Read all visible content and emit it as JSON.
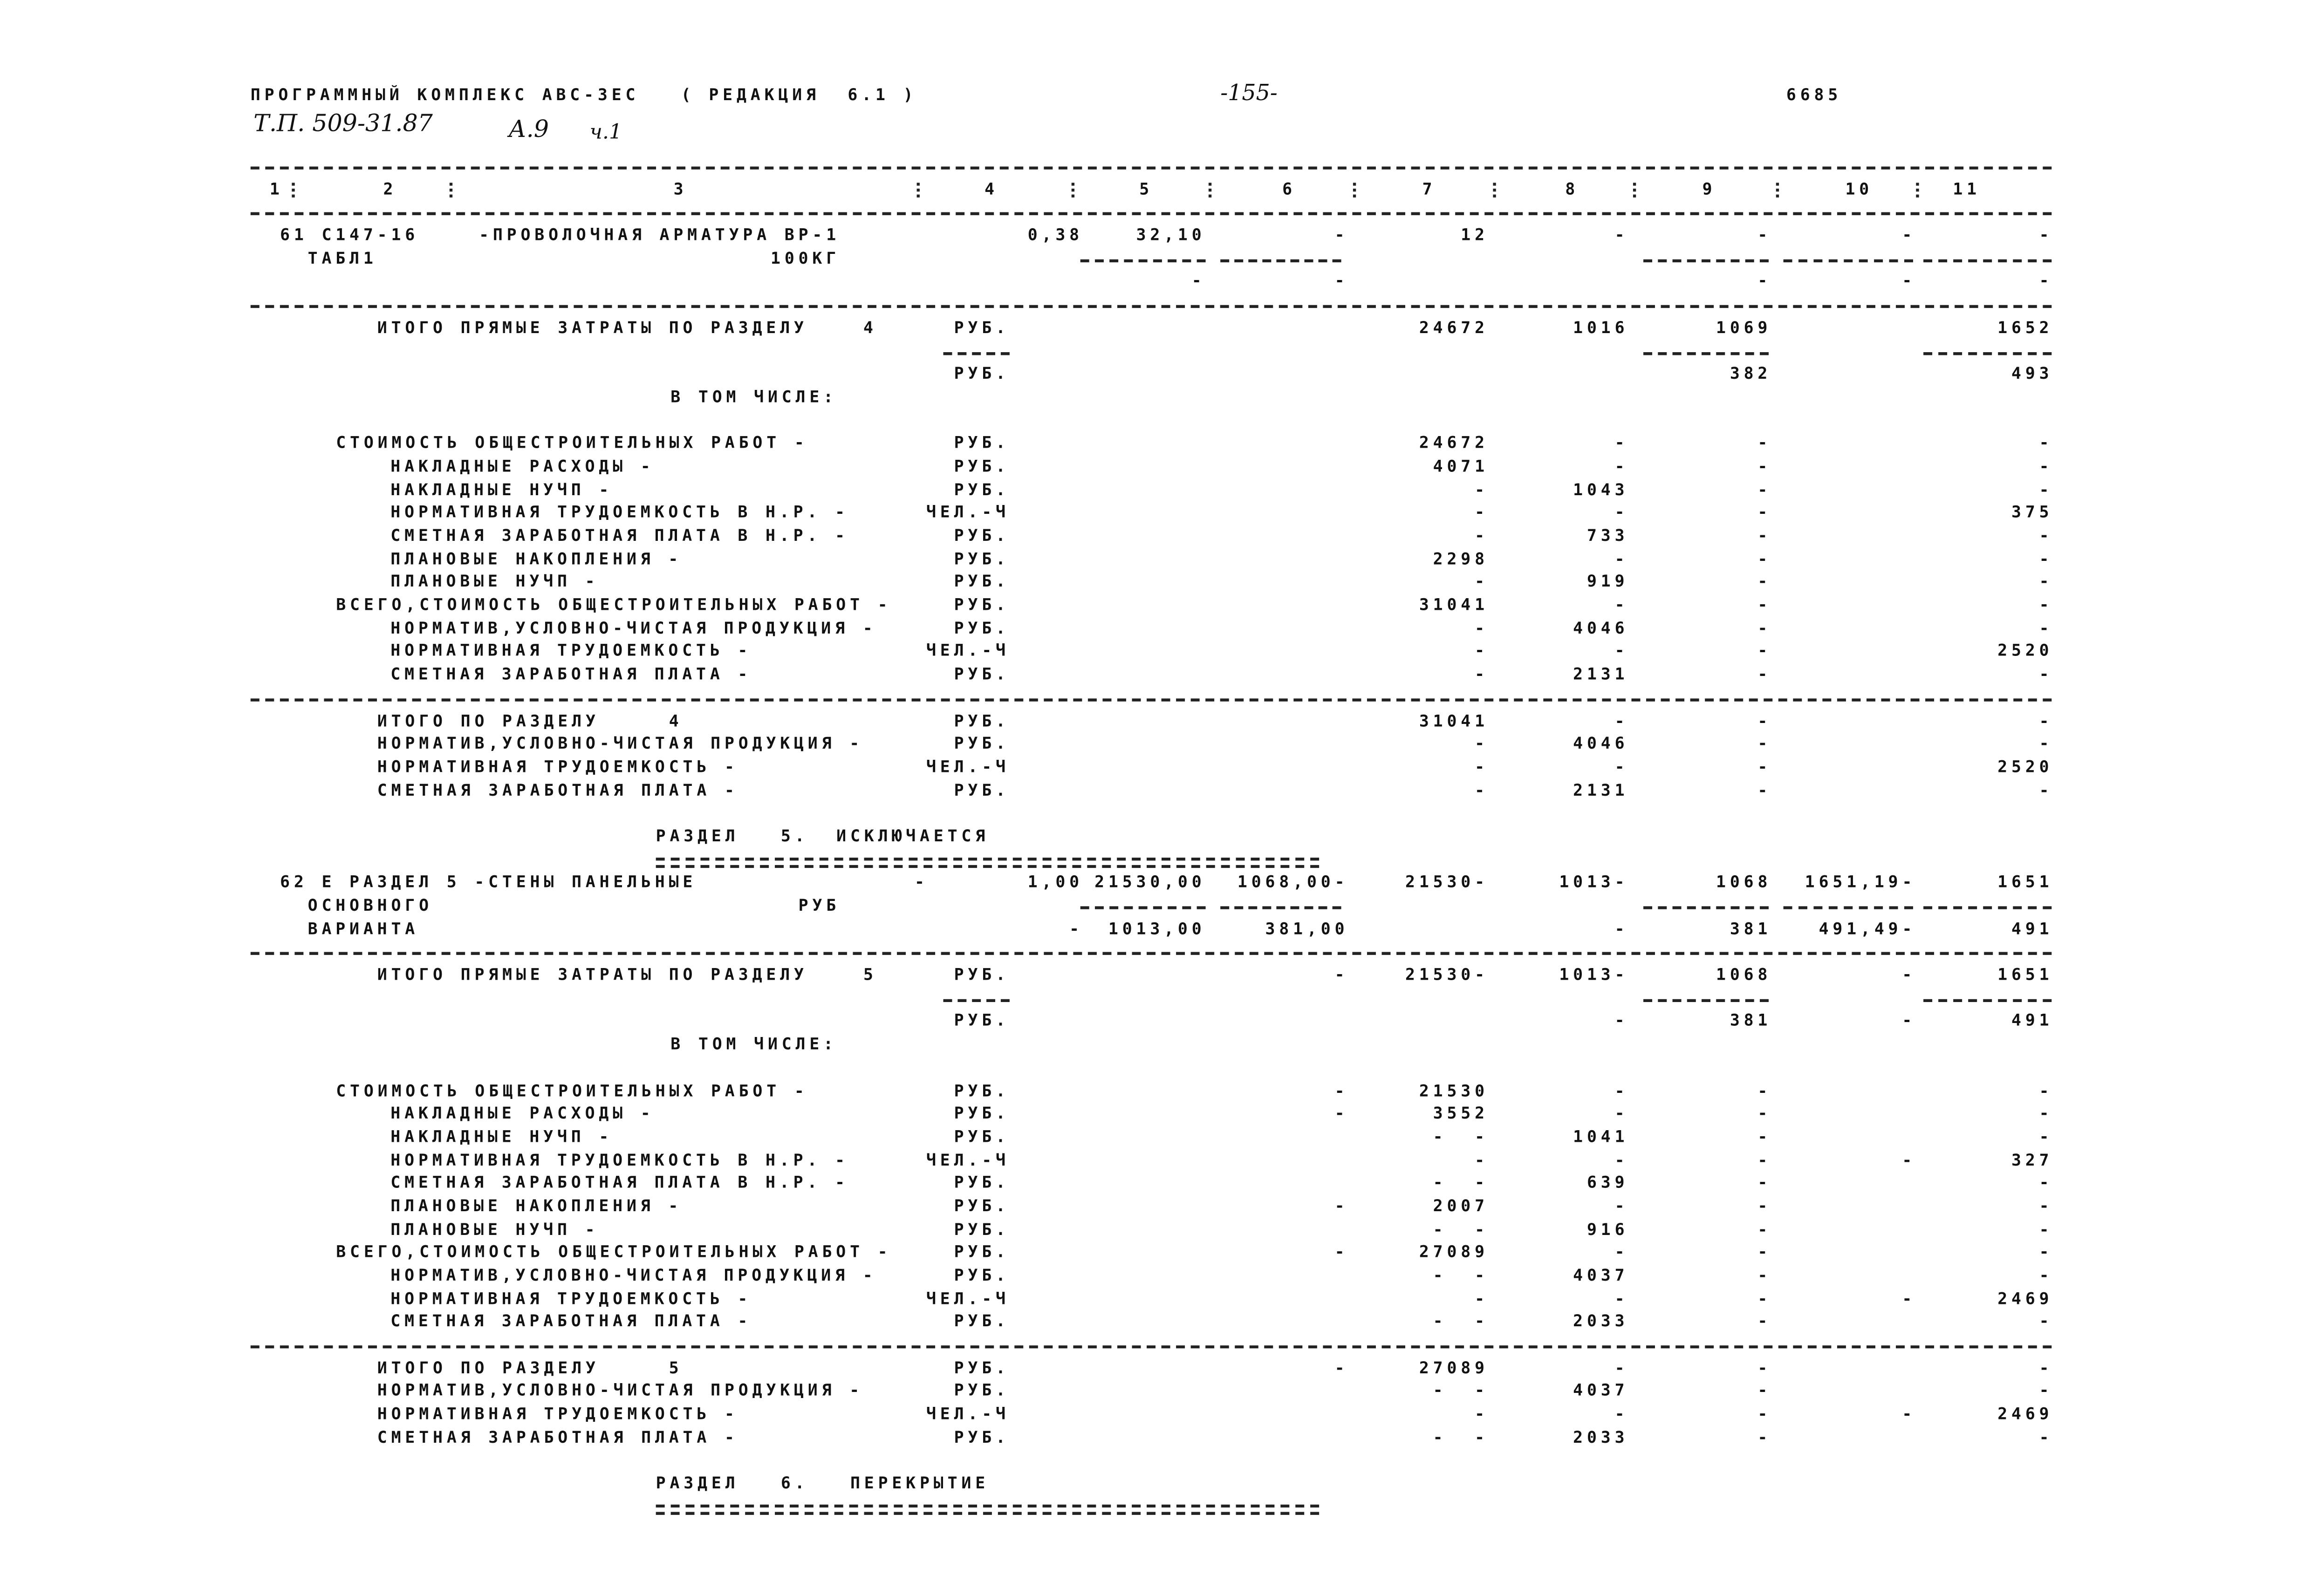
{
  "header": {
    "program": "ПРОГРАММНЫЙ КОМПЛЕКС АВС-ЗЕС   ( РЕДАКЦИЯ  6.1 )",
    "page_number": "-155-",
    "doc_code": "6685",
    "handwritten": {
      "project": "Т.П. 509-31.87",
      "album": "А.9",
      "part": "ч.1"
    }
  },
  "columns": [
    "1",
    "2",
    "3",
    "4",
    "5",
    "6",
    "7",
    "8",
    "9",
    "10",
    "11"
  ],
  "rows": [
    {
      "kind": "rule"
    },
    {
      "kind": "colheader"
    },
    {
      "kind": "rule"
    },
    {
      "kind": "line",
      "level": "item",
      "text": "61 С147-16",
      "desc": "-ПРОВОЛОЧНАЯ АРМАТУРА ВР-1",
      "cells": {
        "c4": "0,38",
        "c5": "32,10",
        "c6": "-",
        "c7": "12",
        "c8": "-",
        "c9": "-",
        "c10": "-",
        "c11": "-"
      }
    },
    {
      "kind": "line",
      "level": "itemsub",
      "text": "  ТАБЛ1",
      "u2": "100КГ",
      "rules": [
        "c5",
        "c6",
        "c9",
        "c10",
        "c11"
      ]
    },
    {
      "kind": "line",
      "cells": {
        "c5": "-",
        "c6": "-",
        "c9": "-",
        "c10": "-",
        "c11": "-"
      }
    },
    {
      "kind": "rule"
    },
    {
      "kind": "line",
      "level": "total",
      "text": "ИТОГО ПРЯМЫЕ ЗАТРАТЫ ПО РАЗДЕЛУ    4",
      "unit": "РУБ.",
      "cells": {
        "c7": "24672",
        "c8": "1016",
        "c9": "1069",
        "c11": "1652"
      }
    },
    {
      "kind": "line",
      "rules": [
        "u",
        "c9",
        "c11"
      ]
    },
    {
      "kind": "line",
      "unit": "РУБ.",
      "cells": {
        "c9": "382",
        "c11": "493"
      }
    },
    {
      "kind": "line",
      "level": "center",
      "text": "В ТОМ ЧИСЛЕ:"
    },
    {
      "kind": "blank"
    },
    {
      "kind": "line",
      "level": "l0",
      "text": "СТОИМОСТЬ ОБЩЕСТРОИТЕЛЬНЫХ РАБОТ -",
      "unit": "РУБ.",
      "cells": {
        "c7": "24672",
        "c8": "-",
        "c9": "-",
        "c11": "-"
      }
    },
    {
      "kind": "line",
      "level": "l1",
      "text": "НАКЛАДНЫЕ РАСХОДЫ -",
      "unit": "РУБ.",
      "cells": {
        "c7": "4071",
        "c8": "-",
        "c9": "-",
        "c11": "-"
      }
    },
    {
      "kind": "line",
      "level": "l1",
      "text": "НАКЛАДНЫЕ НУЧП -",
      "unit": "РУБ.",
      "cells": {
        "c7": "-",
        "c8": "1043",
        "c9": "-",
        "c11": "-"
      }
    },
    {
      "kind": "line",
      "level": "l1",
      "text": "НОРМАТИВНАЯ ТРУДОЕМКОСТЬ В Н.Р. -",
      "unit": "ЧЕЛ.-Ч",
      "cells": {
        "c7": "-",
        "c8": "-",
        "c9": "-",
        "c11": "375"
      }
    },
    {
      "kind": "line",
      "level": "l1",
      "text": "СМЕТНАЯ ЗАРАБОТНАЯ ПЛАТА В Н.Р. -",
      "unit": "РУБ.",
      "cells": {
        "c7": "-",
        "c8": "733",
        "c9": "-",
        "c11": "-"
      }
    },
    {
      "kind": "line",
      "level": "l1",
      "text": "ПЛАНОВЫЕ НАКОПЛЕНИЯ -",
      "unit": "РУБ.",
      "cells": {
        "c7": "2298",
        "c8": "-",
        "c9": "-",
        "c11": "-"
      }
    },
    {
      "kind": "line",
      "level": "l1",
      "text": "ПЛАНОВЫЕ НУЧП -",
      "unit": "РУБ.",
      "cells": {
        "c7": "-",
        "c8": "919",
        "c9": "-",
        "c11": "-"
      }
    },
    {
      "kind": "line",
      "level": "l0",
      "text": "ВСЕГО,СТОИМОСТЬ ОБЩЕСТРОИТЕЛЬНЫХ РАБОТ -",
      "unit": "РУБ.",
      "cells": {
        "c7": "31041",
        "c8": "-",
        "c9": "-",
        "c11": "-"
      }
    },
    {
      "kind": "line",
      "level": "l1",
      "text": "НОРМАТИВ,УСЛОВНО-ЧИСТАЯ ПРОДУКЦИЯ -",
      "unit": "РУБ.",
      "cells": {
        "c7": "-",
        "c8": "4046",
        "c9": "-",
        "c11": "-"
      }
    },
    {
      "kind": "line",
      "level": "l1",
      "text": "НОРМАТИВНАЯ ТРУДОЕМКОСТЬ -",
      "unit": "ЧЕЛ.-Ч",
      "cells": {
        "c7": "-",
        "c8": "-",
        "c9": "-",
        "c11": "2520"
      }
    },
    {
      "kind": "line",
      "level": "l1",
      "text": "СМЕТНАЯ ЗАРАБОТНАЯ ПЛАТА -",
      "unit": "РУБ.",
      "cells": {
        "c7": "-",
        "c8": "2131",
        "c9": "-",
        "c11": "-"
      }
    },
    {
      "kind": "rule"
    },
    {
      "kind": "line",
      "level": "total",
      "text": "ИТОГО ПО РАЗДЕЛУ     4",
      "unit": "РУБ.",
      "cells": {
        "c7": "31041",
        "c8": "-",
        "c9": "-",
        "c11": "-"
      }
    },
    {
      "kind": "line",
      "level": "total",
      "text": "НОРМАТИВ,УСЛОВНО-ЧИСТАЯ ПРОДУКЦИЯ -",
      "unit": "РУБ.",
      "cells": {
        "c7": "-",
        "c8": "4046",
        "c9": "-",
        "c11": "-"
      }
    },
    {
      "kind": "line",
      "level": "total",
      "text": "НОРМАТИВНАЯ ТРУДОЕМКОСТЬ -",
      "unit": "ЧЕЛ.-Ч",
      "cells": {
        "c7": "-",
        "c8": "-",
        "c9": "-",
        "c11": "2520"
      }
    },
    {
      "kind": "line",
      "level": "total",
      "text": "СМЕТНАЯ ЗАРАБОТНАЯ ПЛАТА -",
      "unit": "РУБ.",
      "cells": {
        "c7": "-",
        "c8": "2131",
        "c9": "-",
        "c11": "-"
      }
    },
    {
      "kind": "blank"
    },
    {
      "kind": "line",
      "level": "section",
      "text": "РАЗДЕЛ   5.  ИСКЛЮЧАЕТСЯ"
    },
    {
      "kind": "double"
    },
    {
      "kind": "line",
      "level": "item",
      "text": "62 Е РАЗДЕЛ 5 -СТЕНЫ ПАНЕЛЬНЫЕ",
      "cells": {
        "c3": "-",
        "c4": "1,00",
        "c5": "21530,00",
        "c6": "1068,00-",
        "c7": "21530-",
        "c8": "1013-",
        "c9": "1068",
        "c10": "1651,19-",
        "c11": "1651"
      }
    },
    {
      "kind": "line",
      "level": "itemsub",
      "text": "  ОСНОВНОГО",
      "u2": "РУБ",
      "rules": [
        "c5",
        "c6",
        "c9",
        "c10",
        "c11"
      ]
    },
    {
      "kind": "line",
      "level": "itemsub",
      "text": "  ВАРИАНТА",
      "cells": {
        "c4": "-",
        "c5": "1013,00",
        "c6": "381,00",
        "c8": "-",
        "c9": "381",
        "c10": "491,49-",
        "c11": "491"
      }
    },
    {
      "kind": "rule"
    },
    {
      "kind": "line",
      "level": "total",
      "text": "ИТОГО ПРЯМЫЕ ЗАТРАТЫ ПО РАЗДЕЛУ    5",
      "unit": "РУБ.",
      "cells": {
        "c6": "-",
        "c7": "21530-",
        "c8": "1013-",
        "c9": "1068",
        "c10": "-",
        "c11": "1651"
      }
    },
    {
      "kind": "line",
      "rules": [
        "u",
        "c9",
        "c11"
      ]
    },
    {
      "kind": "line",
      "unit": "РУБ.",
      "cells": {
        "c8": "-",
        "c9": "381",
        "c10": "-",
        "c11": "491"
      }
    },
    {
      "kind": "line",
      "level": "center",
      "text": "В ТОМ ЧИСЛЕ:"
    },
    {
      "kind": "blank"
    },
    {
      "kind": "line",
      "level": "l0",
      "text": "СТОИМОСТЬ ОБЩЕСТРОИТЕЛЬНЫХ РАБОТ -",
      "unit": "РУБ.",
      "cells": {
        "c6": "-",
        "c7": "21530",
        "c8": "-",
        "c9": "-",
        "c11": "-"
      }
    },
    {
      "kind": "line",
      "level": "l1",
      "text": "НАКЛАДНЫЕ РАСХОДЫ -",
      "unit": "РУБ.",
      "cells": {
        "c6": "-",
        "c7": "3552",
        "c8": "-",
        "c9": "-",
        "c11": "-"
      }
    },
    {
      "kind": "line",
      "level": "l1",
      "text": "НАКЛАДНЫЕ НУЧП -",
      "unit": "РУБ.",
      "cells": {
        "c7": "-  -",
        "c8": "1041",
        "c9": "-",
        "c11": "-"
      }
    },
    {
      "kind": "line",
      "level": "l1",
      "text": "НОРМАТИВНАЯ ТРУДОЕМКОСТЬ В Н.Р. -",
      "unit": "ЧЕЛ.-Ч",
      "cells": {
        "c7": "-",
        "c8": "-",
        "c9": "-",
        "c10": "-",
        "c11": "327"
      }
    },
    {
      "kind": "line",
      "level": "l1",
      "text": "СМЕТНАЯ ЗАРАБОТНАЯ ПЛАТА В Н.Р. -",
      "unit": "РУБ.",
      "cells": {
        "c7": "-  -",
        "c8": "639",
        "c9": "-",
        "c11": "-"
      }
    },
    {
      "kind": "line",
      "level": "l1",
      "text": "ПЛАНОВЫЕ НАКОПЛЕНИЯ -",
      "unit": "РУБ.",
      "cells": {
        "c6": "-",
        "c7": "2007",
        "c8": "-",
        "c9": "-",
        "c11": "-"
      }
    },
    {
      "kind": "line",
      "level": "l1",
      "text": "ПЛАНОВЫЕ НУЧП -",
      "unit": "РУБ.",
      "cells": {
        "c7": "-  -",
        "c8": "916",
        "c9": "-",
        "c11": "-"
      }
    },
    {
      "kind": "line",
      "level": "l0",
      "text": "ВСЕГО,СТОИМОСТЬ ОБЩЕСТРОИТЕЛЬНЫХ РАБОТ -",
      "unit": "РУБ.",
      "cells": {
        "c6": "-",
        "c7": "27089",
        "c8": "-",
        "c9": "-",
        "c11": "-"
      }
    },
    {
      "kind": "line",
      "level": "l1",
      "text": "НОРМАТИВ,УСЛОВНО-ЧИСТАЯ ПРОДУКЦИЯ -",
      "unit": "РУБ.",
      "cells": {
        "c7": "-  -",
        "c8": "4037",
        "c9": "-",
        "c11": "-"
      }
    },
    {
      "kind": "line",
      "level": "l1",
      "text": "НОРМАТИВНАЯ ТРУДОЕМКОСТЬ -",
      "unit": "ЧЕЛ.-Ч",
      "cells": {
        "c7": "-",
        "c8": "-",
        "c9": "-",
        "c10": "-",
        "c11": "2469"
      }
    },
    {
      "kind": "line",
      "level": "l1",
      "text": "СМЕТНАЯ ЗАРАБОТНАЯ ПЛАТА -",
      "unit": "РУБ.",
      "cells": {
        "c7": "-  -",
        "c8": "2033",
        "c9": "-",
        "c11": "-"
      }
    },
    {
      "kind": "rule"
    },
    {
      "kind": "line",
      "level": "total",
      "text": "ИТОГО ПО РАЗДЕЛУ     5",
      "unit": "РУБ.",
      "cells": {
        "c6": "-",
        "c7": "27089",
        "c8": "-",
        "c9": "-",
        "c11": "-"
      }
    },
    {
      "kind": "line",
      "level": "total",
      "text": "НОРМАТИВ,УСЛОВНО-ЧИСТАЯ ПРОДУКЦИЯ -",
      "unit": "РУБ.",
      "cells": {
        "c7": "-  -",
        "c8": "4037",
        "c9": "-",
        "c11": "-"
      }
    },
    {
      "kind": "line",
      "level": "total",
      "text": "НОРМАТИВНАЯ ТРУДОЕМКОСТЬ -",
      "unit": "ЧЕЛ.-Ч",
      "cells": {
        "c7": "-",
        "c8": "-",
        "c9": "-",
        "c10": "-",
        "c11": "2469"
      }
    },
    {
      "kind": "line",
      "level": "total",
      "text": "СМЕТНАЯ ЗАРАБОТНАЯ ПЛАТА -",
      "unit": "РУБ.",
      "cells": {
        "c7": "-  -",
        "c8": "2033",
        "c9": "-",
        "c11": "-"
      }
    },
    {
      "kind": "blank"
    },
    {
      "kind": "line",
      "level": "section",
      "text": "РАЗДЕЛ   6.   ПЕРЕКРЫТИЕ"
    },
    {
      "kind": "double"
    }
  ]
}
